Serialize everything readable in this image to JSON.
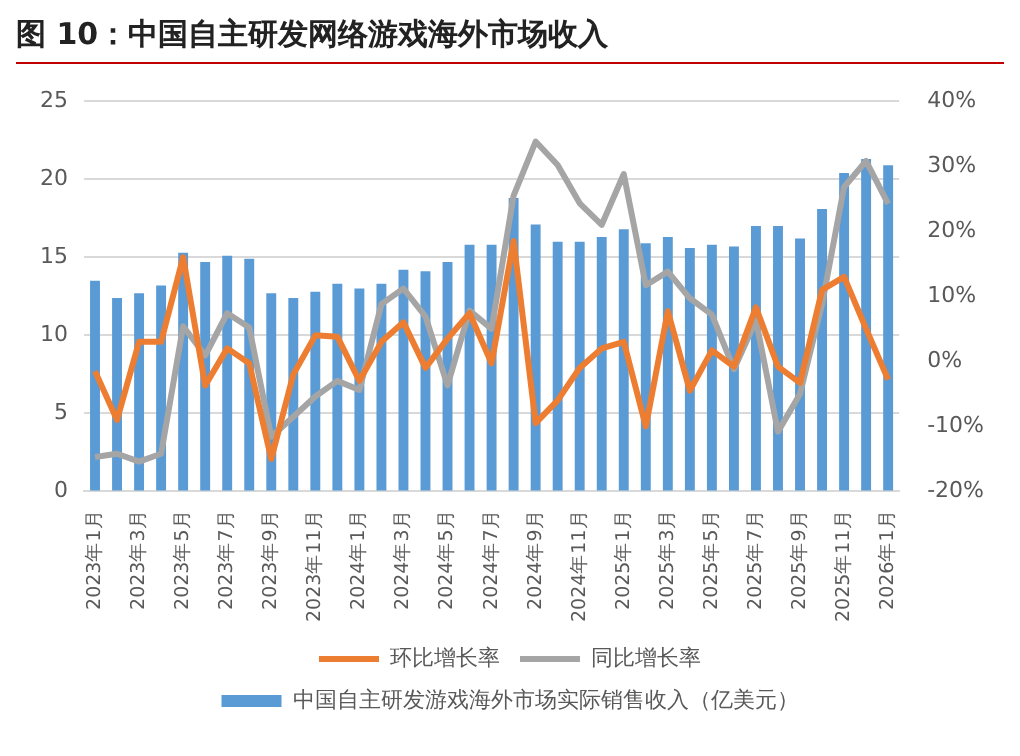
{
  "chart_data": {
    "type": "bar",
    "title": "图 10：中国自主研发网络游戏海外市场收入",
    "categories": [
      "2023年1月",
      null,
      "2023年3月",
      null,
      "2023年5月",
      null,
      "2023年7月",
      null,
      "2023年9月",
      null,
      "2023年11月",
      null,
      "2024年1月",
      null,
      "2024年3月",
      null,
      "2024年5月",
      null,
      "2024年7月",
      null,
      "2024年9月",
      null,
      "2024年11月",
      null,
      "2025年1月",
      null,
      "2025年3月",
      null,
      "2025年5月",
      null,
      "2025年7月",
      null,
      "2025年9月",
      null,
      "2025年11月",
      null,
      "2026年1月"
    ],
    "series": [
      {
        "name": "中国自主研发游戏海外市场实际销售收入（亿美元）",
        "color": "#5b9bd5",
        "values": [
          13.5,
          12.4,
          12.7,
          13.2,
          15.3,
          14.7,
          15.1,
          14.9,
          12.7,
          12.4,
          12.8,
          13.3,
          13.0,
          13.3,
          14.2,
          14.1,
          14.7,
          15.8,
          15.8,
          18.8,
          17.1,
          16.0,
          16.0,
          16.3,
          16.8,
          15.9,
          16.3,
          15.6,
          15.8,
          15.7,
          17.0,
          17.0,
          16.2,
          18.1,
          20.4,
          21.3,
          20.9
        ]
      },
      {
        "name": "环比增长率",
        "type": "line",
        "axis": "y2",
        "color": "#ed7d31",
        "values": [
          -1.5,
          -9,
          3,
          3,
          16,
          -3.7,
          2,
          -0.3,
          -15,
          -2,
          4,
          3.8,
          -3,
          3,
          6,
          -1,
          3.5,
          7.4,
          -0.3,
          18.5,
          -9.5,
          -6,
          -1,
          2,
          3,
          -10,
          7.7,
          -4.5,
          1.7,
          -0.8,
          8.3,
          -0.8,
          -3.3,
          11,
          13,
          5,
          -2.8
        ]
      },
      {
        "name": "同比增长率",
        "type": "line",
        "axis": "y2",
        "color": "#a5a5a5",
        "values": [
          -14.7,
          -14.2,
          -15.4,
          -14.2,
          5.4,
          0.9,
          7.4,
          5.2,
          -11.6,
          -8.5,
          -5.4,
          -3,
          -4.4,
          8.8,
          11.2,
          6.9,
          -3.7,
          7.8,
          5,
          25.5,
          33.8,
          30.2,
          24.3,
          21,
          28.8,
          11.7,
          13.8,
          9.7,
          7.2,
          -1.2,
          6.3,
          -10.8,
          -5,
          8.8,
          26.8,
          30.8,
          24.2
        ]
      }
    ],
    "ylim": [
      0,
      25
    ],
    "yticks": [
      0,
      5,
      10,
      15,
      20,
      25
    ],
    "y2lim": [
      -20,
      40
    ],
    "y2ticks": [
      {
        "value": -20,
        "label": "-20%"
      },
      {
        "value": -10,
        "label": "-10%"
      },
      {
        "value": 0,
        "label": "0%"
      },
      {
        "value": 10,
        "label": "10%"
      },
      {
        "value": 20,
        "label": "20%"
      },
      {
        "value": 30,
        "label": "30%"
      },
      {
        "value": 40,
        "label": "40%"
      }
    ],
    "grid": "y",
    "legend": "bottom",
    "marker": "none",
    "line_style": "solid"
  }
}
